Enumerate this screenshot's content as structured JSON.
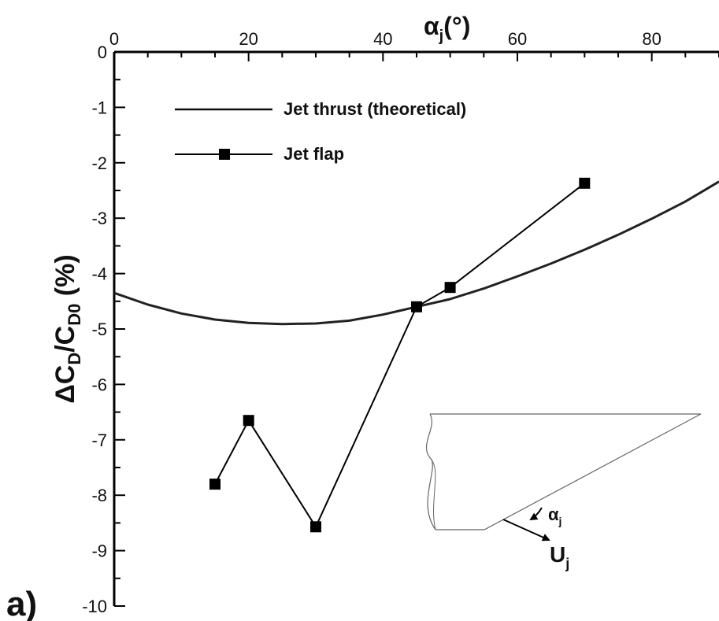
{
  "panel_label": "a)",
  "chart_data": {
    "type": "line",
    "xlabel": {
      "main": "α",
      "sub": "j",
      "tail": "(°)"
    },
    "ylabel": {
      "pre": "ΔC",
      "sub1": "D",
      "mid": "/C",
      "sub2": "D0",
      "tail": " (%)"
    },
    "x_axis_position": "top",
    "xlim": [
      0,
      90
    ],
    "ylim": [
      -10,
      0
    ],
    "x_ticks": [
      0,
      20,
      40,
      60,
      80
    ],
    "y_ticks": [
      0,
      -1,
      -2,
      -3,
      -4,
      -5,
      -6,
      -7,
      -8,
      -9,
      -10
    ],
    "grid": false,
    "legend_position": "top-left",
    "series": [
      {
        "name": "Jet thrust (theoretical)",
        "style": "line",
        "color": "#222222",
        "x": [
          0,
          5,
          10,
          15,
          20,
          25,
          30,
          35,
          40,
          45,
          50,
          55,
          60,
          65,
          70,
          75,
          80,
          85,
          90
        ],
        "y": [
          -4.35,
          -4.56,
          -4.72,
          -4.83,
          -4.89,
          -4.91,
          -4.9,
          -4.85,
          -4.74,
          -4.6,
          -4.46,
          -4.27,
          -4.05,
          -3.82,
          -3.57,
          -3.3,
          -3.01,
          -2.7,
          -2.34
        ]
      },
      {
        "name": "Jet flap",
        "style": "line-square-markers",
        "color": "#000000",
        "x": [
          15,
          20,
          30,
          45,
          50,
          70
        ],
        "y": [
          -7.8,
          -6.65,
          -8.57,
          -4.6,
          -4.25,
          -2.37
        ]
      }
    ],
    "inset": {
      "alpha_label": {
        "main": "α",
        "sub": "j"
      },
      "u_label": {
        "main": "U",
        "sub": "j"
      }
    }
  }
}
